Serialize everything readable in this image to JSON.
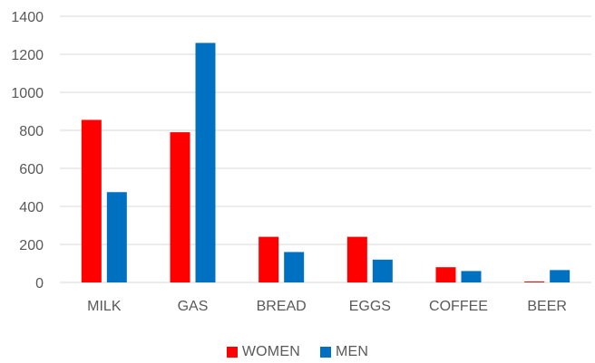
{
  "chart_data": {
    "type": "bar",
    "title": "",
    "xlabel": "",
    "ylabel": "",
    "categories": [
      "MILK",
      "GAS",
      "BREAD",
      "EGGS",
      "COFFEE",
      "BEER"
    ],
    "series": [
      {
        "name": "WOMEN",
        "color": "#ff0000",
        "values": [
          855,
          790,
          240,
          240,
          80,
          5
        ]
      },
      {
        "name": "MEN",
        "color": "#0070c0",
        "values": [
          475,
          1260,
          160,
          120,
          60,
          65
        ]
      }
    ],
    "ylim": [
      0,
      1400
    ],
    "yticks": [
      0,
      200,
      400,
      600,
      800,
      1000,
      1200,
      1400
    ],
    "grid": true,
    "legend": "bottom"
  }
}
